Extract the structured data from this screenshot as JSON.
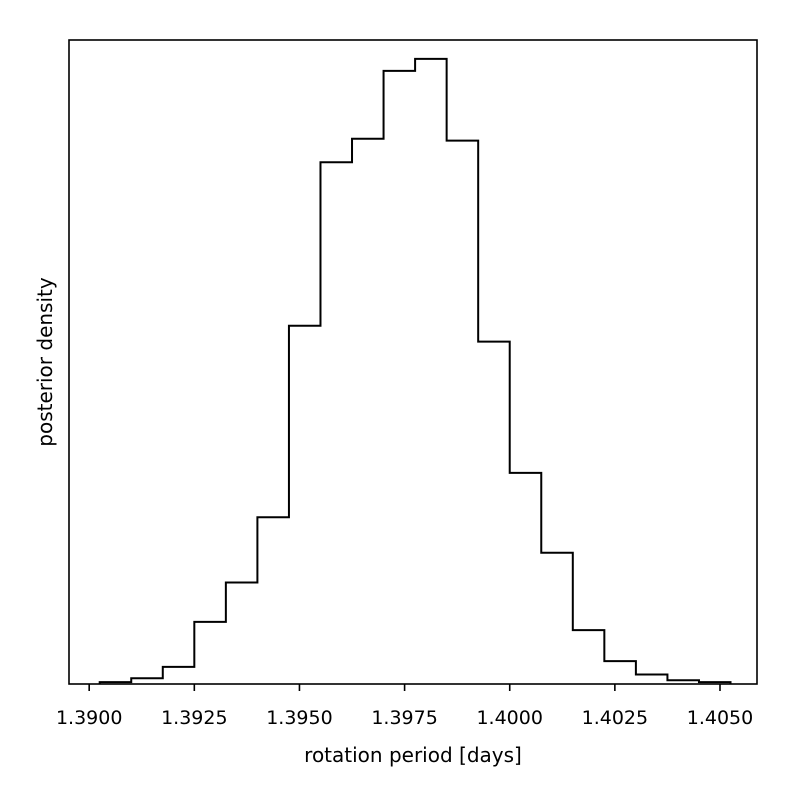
{
  "chart_data": {
    "type": "histogram",
    "xlabel": "rotation period [days]",
    "ylabel": "posterior density",
    "xlim": [
      1.38952,
      1.40588
    ],
    "ylim": [
      0,
      1.0
    ],
    "x_ticks": [
      1.39,
      1.3925,
      1.395,
      1.3975,
      1.4,
      1.4025,
      1.405
    ],
    "x_tick_labels": [
      "1.3900",
      "1.3925",
      "1.3950",
      "1.3975",
      "1.4000",
      "1.4025",
      "1.4050"
    ],
    "y_ticks_shown": false,
    "grid": false,
    "bin_edges": [
      1.39025,
      1.391,
      1.39175,
      1.3925,
      1.39325,
      1.394,
      1.39475,
      1.3955,
      1.39625,
      1.397,
      1.39775,
      1.3985,
      1.39925,
      1.4,
      1.40075,
      1.4015,
      1.40225,
      1.403,
      1.40375,
      1.4045,
      1.40525
    ],
    "values": [
      0.003,
      0.009,
      0.027,
      0.098,
      0.16,
      0.263,
      0.565,
      0.823,
      0.86,
      0.967,
      0.986,
      0.857,
      0.54,
      0.333,
      0.207,
      0.085,
      0.036,
      0.015,
      0.006,
      0.003
    ]
  }
}
